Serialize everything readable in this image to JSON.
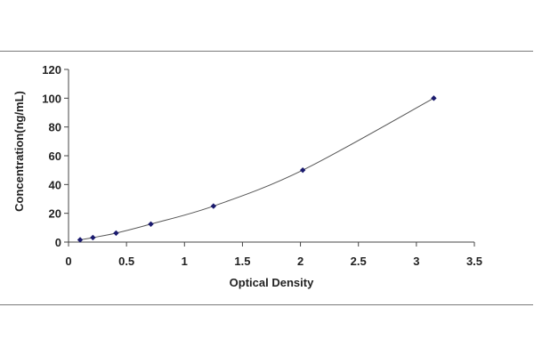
{
  "chart_data": {
    "type": "scatter",
    "title": "",
    "xlabel": "Optical Density",
    "ylabel": "Concentration(ng/mL)",
    "xlim": [
      0,
      3.5
    ],
    "ylim": [
      0,
      120
    ],
    "x_ticks": [
      "0",
      "0.5",
      "1",
      "1.5",
      "2",
      "2.5",
      "3",
      "3.5"
    ],
    "y_ticks": [
      "0",
      "20",
      "40",
      "60",
      "80",
      "100",
      "120"
    ],
    "grid": false,
    "legend": "none",
    "series": [
      {
        "points": [
          {
            "x": 0.1,
            "y": 1.56
          },
          {
            "x": 0.21,
            "y": 3.12
          },
          {
            "x": 0.41,
            "y": 6.25
          },
          {
            "x": 0.71,
            "y": 12.5
          },
          {
            "x": 1.25,
            "y": 25
          },
          {
            "x": 2.02,
            "y": 50
          },
          {
            "x": 3.15,
            "y": 100
          }
        ],
        "marker_color": "#1a1a6e",
        "line_color": "#555555",
        "fit": "smooth curve"
      }
    ]
  }
}
